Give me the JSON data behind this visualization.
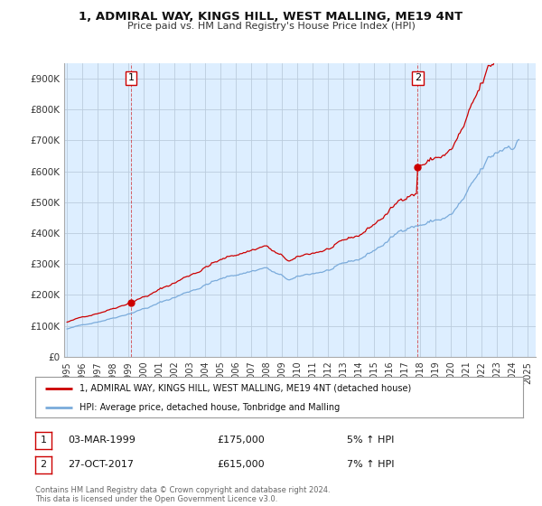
{
  "title": "1, ADMIRAL WAY, KINGS HILL, WEST MALLING, ME19 4NT",
  "subtitle": "Price paid vs. HM Land Registry's House Price Index (HPI)",
  "legend_line1": "1, ADMIRAL WAY, KINGS HILL, WEST MALLING, ME19 4NT (detached house)",
  "legend_line2": "HPI: Average price, detached house, Tonbridge and Malling",
  "annotation1_label": "1",
  "annotation1_date": "03-MAR-1999",
  "annotation1_price": "£175,000",
  "annotation1_hpi": "5% ↑ HPI",
  "annotation2_label": "2",
  "annotation2_date": "27-OCT-2017",
  "annotation2_price": "£615,000",
  "annotation2_hpi": "7% ↑ HPI",
  "footnote": "Contains HM Land Registry data © Crown copyright and database right 2024.\nThis data is licensed under the Open Government Licence v3.0.",
  "ylim": [
    0,
    950000
  ],
  "yticks": [
    0,
    100000,
    200000,
    300000,
    400000,
    500000,
    600000,
    700000,
    800000,
    900000
  ],
  "ytick_labels": [
    "£0",
    "£100K",
    "£200K",
    "£300K",
    "£400K",
    "£500K",
    "£600K",
    "£700K",
    "£800K",
    "£900K"
  ],
  "red_color": "#cc0000",
  "blue_color": "#7aabdb",
  "chart_bg_color": "#ddeeff",
  "background_color": "#ffffff",
  "grid_color": "#bbccdd",
  "purchase1_year": 1999.17,
  "purchase1_value": 175000,
  "purchase2_year": 2017.82,
  "purchase2_value": 615000,
  "xtick_years": [
    1995,
    1996,
    1997,
    1998,
    1999,
    2000,
    2001,
    2002,
    2003,
    2004,
    2005,
    2006,
    2007,
    2008,
    2009,
    2010,
    2011,
    2012,
    2013,
    2014,
    2015,
    2016,
    2017,
    2018,
    2019,
    2020,
    2021,
    2022,
    2023,
    2024,
    2025
  ]
}
